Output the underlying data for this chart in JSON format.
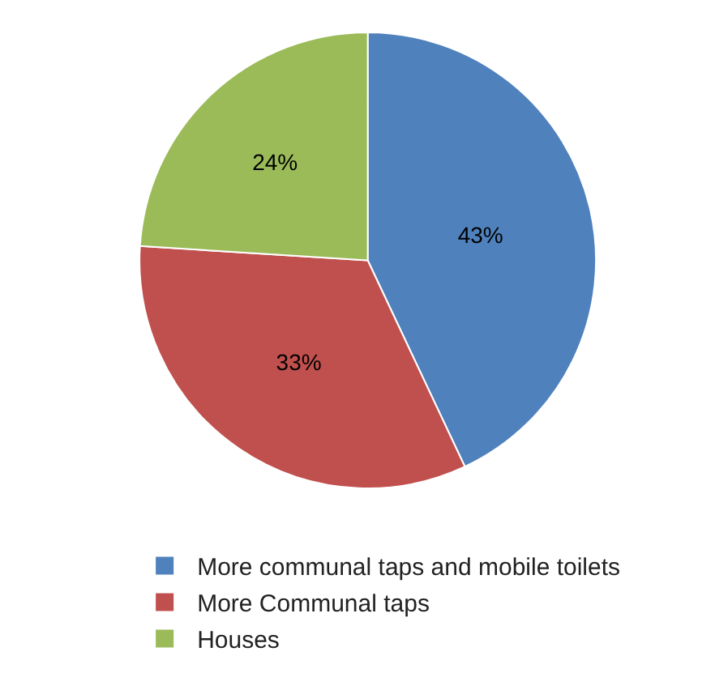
{
  "chart_data": {
    "type": "pie",
    "categories": [
      "More communal taps and mobile toilets",
      "More Communal taps",
      "Houses"
    ],
    "values": [
      43,
      33,
      24
    ],
    "value_labels": [
      "43%",
      "33%",
      "24%"
    ],
    "colors": [
      "#4f81bd",
      "#c0504d",
      "#9bbb59"
    ],
    "legend": "bottom"
  }
}
